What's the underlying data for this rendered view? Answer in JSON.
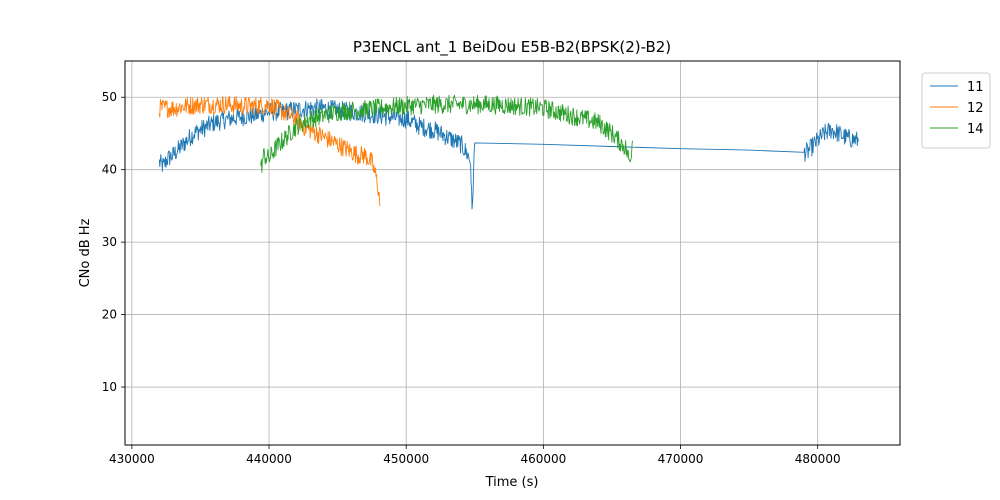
{
  "chart_data": {
    "type": "line",
    "title": "P3ENCL ant_1 BeiDou E5B-B2(BPSK(2)-B2)",
    "xlabel": "Time (s)",
    "ylabel": "CNo dB Hz",
    "xlim": [
      429500,
      486000
    ],
    "ylim": [
      2,
      55
    ],
    "x_ticks": [
      430000,
      440000,
      450000,
      460000,
      470000,
      480000
    ],
    "y_ticks": [
      10,
      20,
      30,
      40,
      50
    ],
    "grid": true,
    "legend_position": "upper-right-outside",
    "series": [
      {
        "name": "11",
        "color": "#1f77b4",
        "x": [
          432000,
          432300,
          432600,
          433000,
          433500,
          434000,
          434500,
          435000,
          435500,
          436000,
          437000,
          438000,
          439000,
          440000,
          441000,
          442000,
          443000,
          444000,
          445000,
          446000,
          447000,
          448000,
          449000,
          450000,
          451000,
          452000,
          453000,
          454000,
          454500,
          454700,
          454800,
          455000,
          460000,
          465000,
          470000,
          475000,
          479000,
          479300,
          479500,
          480000,
          480500,
          481000,
          481500,
          482000,
          482500,
          483000
        ],
        "y": [
          41,
          40.5,
          41.5,
          42,
          43,
          44,
          45,
          45.5,
          46,
          46.5,
          47,
          47.3,
          47.5,
          48,
          48,
          48.3,
          48.5,
          48.5,
          48.2,
          48,
          47.8,
          47.5,
          47.2,
          47,
          46,
          45.5,
          44.5,
          43.5,
          42,
          41,
          34,
          43.7,
          43.5,
          43.2,
          42.9,
          42.7,
          42.4,
          42.5,
          43,
          44,
          45,
          45.5,
          45,
          44.5,
          44.2,
          44
        ]
      },
      {
        "name": "12",
        "color": "#ff7f0e",
        "x": [
          432000,
          433000,
          434000,
          435000,
          436000,
          437000,
          438000,
          439000,
          440000,
          441000,
          442000,
          442500,
          443000,
          443500,
          444000,
          444500,
          445000,
          445500,
          446000,
          446500,
          447000,
          447500,
          447800,
          448000,
          448100
        ],
        "y": [
          48.5,
          48.5,
          48.8,
          49,
          49,
          49,
          48.8,
          48.8,
          49,
          48,
          47,
          46,
          45.5,
          45,
          44.5,
          44,
          43.5,
          43,
          42.5,
          42,
          42,
          41,
          39,
          37,
          35
        ]
      },
      {
        "name": "14",
        "color": "#2ca02c",
        "x": [
          439400,
          439600,
          440000,
          440500,
          441000,
          441500,
          442000,
          443000,
          444000,
          445000,
          446000,
          447000,
          448000,
          449000,
          450000,
          452000,
          454000,
          456000,
          458000,
          460000,
          461000,
          462000,
          463000,
          464000,
          465000,
          465500,
          466000,
          466300,
          466500
        ],
        "y": [
          40,
          42,
          41.5,
          43,
          44,
          45,
          46,
          47,
          47.5,
          48,
          48.2,
          48.3,
          48.5,
          48.7,
          48.8,
          49,
          49,
          49,
          48.8,
          48.5,
          48,
          47.5,
          47,
          46.5,
          45,
          44,
          43,
          41,
          44
        ]
      }
    ]
  }
}
